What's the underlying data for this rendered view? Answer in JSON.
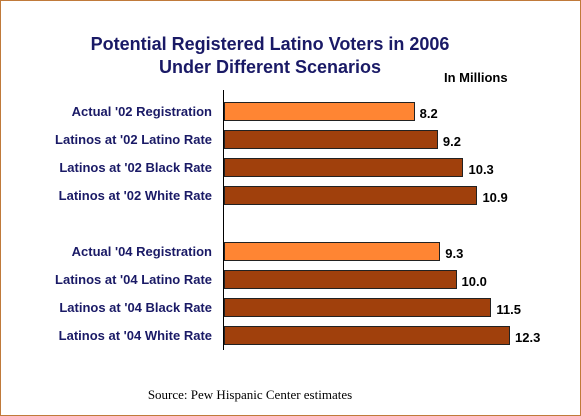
{
  "chart_data": {
    "type": "bar",
    "orientation": "horizontal",
    "title_lines": [
      "Potential Registered Latino Voters in 2006",
      "Under Different Scenarios"
    ],
    "units_label": "In Millions",
    "categories": [
      "Actual '02 Registration",
      "Latinos at '02 Latino Rate",
      "Latinos at '02 Black Rate",
      "Latinos at '02 White Rate",
      "Actual '04 Registration",
      "Latinos at '04 Latino Rate",
      "Latinos at '04 Black Rate",
      "Latinos at '04 White Rate"
    ],
    "values": [
      8.2,
      9.2,
      10.3,
      10.9,
      9.3,
      10.0,
      11.5,
      12.3
    ],
    "value_labels": [
      "8.2",
      "9.2",
      "10.3",
      "10.9",
      "9.3",
      "10.0",
      "11.5",
      "12.3"
    ],
    "highlight": [
      true,
      false,
      false,
      false,
      true,
      false,
      false,
      false
    ],
    "colors": {
      "highlight": "#ff8533",
      "default": "#a0400c"
    },
    "xlim": [
      0,
      13
    ],
    "grid": false,
    "legend": "none"
  },
  "source": "Source: Pew Hispanic Center estimates"
}
